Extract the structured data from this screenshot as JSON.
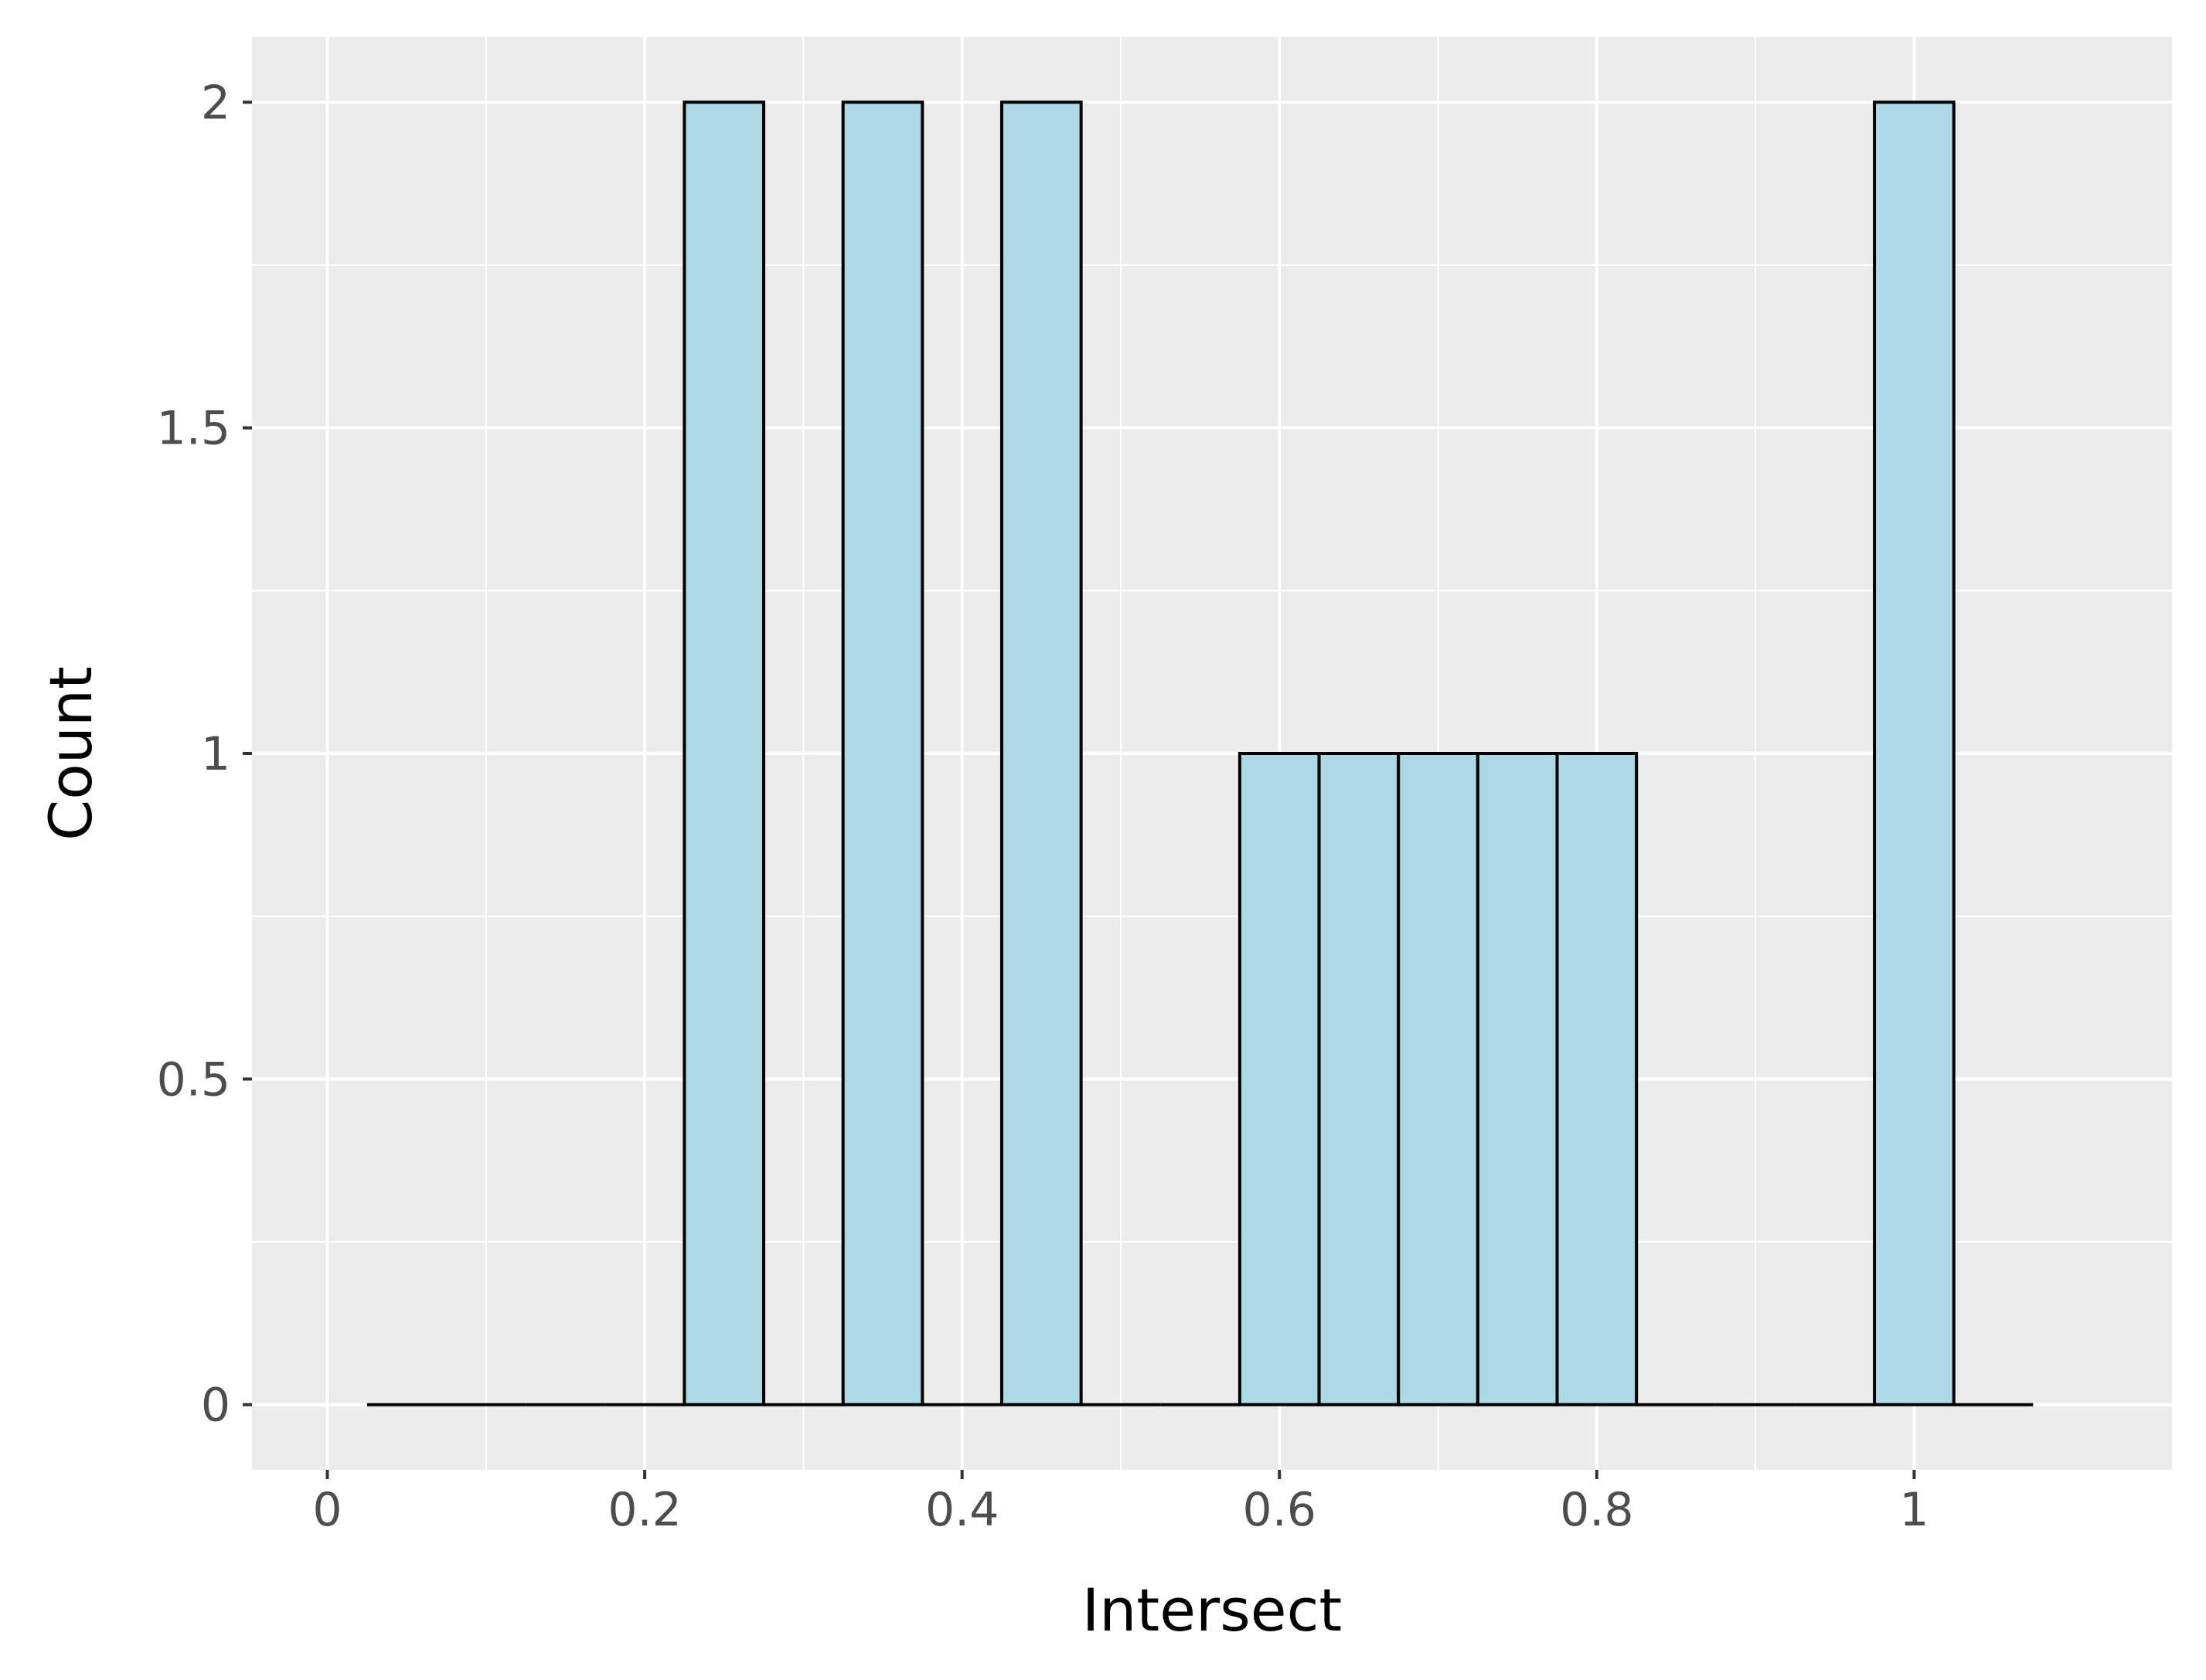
{
  "chart_data": {
    "type": "bar",
    "title": "",
    "xlabel": "Intersect",
    "ylabel": "Count",
    "xlim": [
      -0.0475,
      1.1625
    ],
    "ylim": [
      -0.1,
      2.1
    ],
    "x_ticks": [
      0,
      0.2,
      0.4,
      0.6,
      0.8,
      1
    ],
    "x_tick_labels": [
      "0",
      "0.2",
      "0.4",
      "0.6",
      "0.8",
      "1"
    ],
    "y_ticks": [
      0,
      0.5,
      1,
      1.5,
      2
    ],
    "y_tick_labels": [
      "0",
      "0.5",
      "1",
      "1.5",
      "2"
    ],
    "grid": true,
    "bin_width": 0.05,
    "bins": [
      {
        "x": 0.05,
        "count": 0
      },
      {
        "x": 0.1,
        "count": 0
      },
      {
        "x": 0.15,
        "count": 0
      },
      {
        "x": 0.2,
        "count": 0
      },
      {
        "x": 0.25,
        "count": 2
      },
      {
        "x": 0.3,
        "count": 0
      },
      {
        "x": 0.35,
        "count": 2
      },
      {
        "x": 0.4,
        "count": 0
      },
      {
        "x": 0.45,
        "count": 2
      },
      {
        "x": 0.5,
        "count": 0
      },
      {
        "x": 0.55,
        "count": 0
      },
      {
        "x": 0.6,
        "count": 1
      },
      {
        "x": 0.65,
        "count": 1
      },
      {
        "x": 0.7,
        "count": 1
      },
      {
        "x": 0.75,
        "count": 1
      },
      {
        "x": 0.8,
        "count": 1
      },
      {
        "x": 0.85,
        "count": 0
      },
      {
        "x": 0.9,
        "count": 0
      },
      {
        "x": 0.95,
        "count": 0
      },
      {
        "x": 1.0,
        "count": 2
      },
      {
        "x": 1.05,
        "count": 0
      }
    ],
    "colors": {
      "panel_background": "#ebebeb",
      "grid_major": "#ffffff",
      "bar_fill": "#add8e6",
      "bar_outline": "#000000"
    }
  }
}
